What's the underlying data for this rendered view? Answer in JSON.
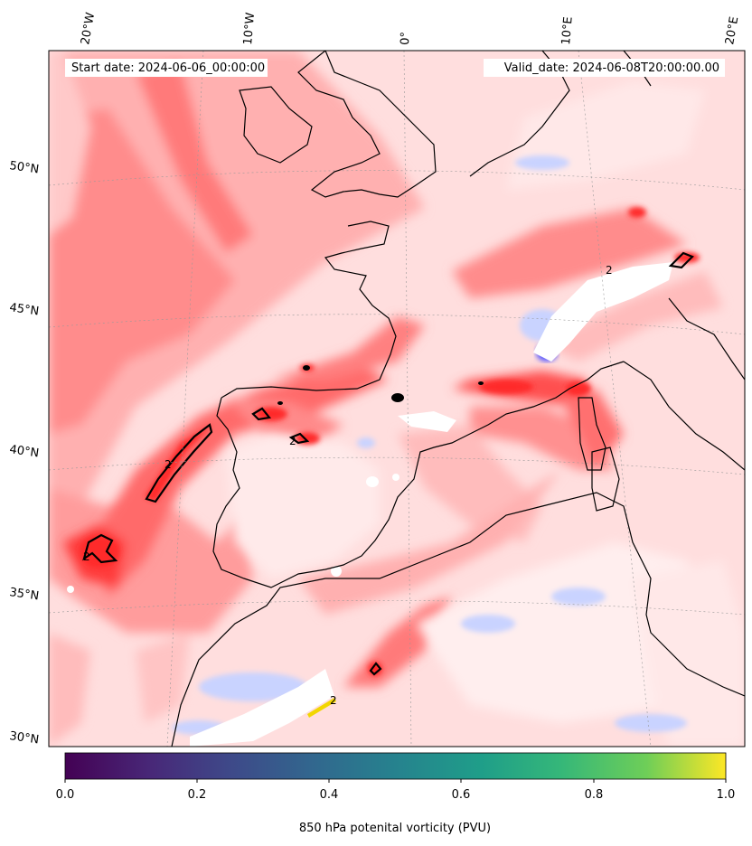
{
  "header": {
    "start_date": "Start date: 2024-06-06_00:00:00",
    "valid_date": "Valid_date: 2024-06-08T20:00:00.00"
  },
  "lon_labels": [
    "20°W",
    "10°W",
    "0°",
    "10°E",
    "20°E"
  ],
  "lat_labels": [
    "50°N",
    "45°N",
    "40°N",
    "35°N",
    "30°N"
  ],
  "colorbar": {
    "label": "850 hPa potenital vorticity (PVU)",
    "ticks": [
      "0.0",
      "0.2",
      "0.4",
      "0.6",
      "0.8",
      "1.0"
    ],
    "range": [
      0,
      1
    ],
    "colormap": "viridis"
  },
  "contour": {
    "level_label": "2"
  },
  "colors": {
    "field_low": "#ffe6e6",
    "field_mid": "#ff9c9c",
    "field_high": "#ff3b3b",
    "field_negative": "#c9d3ff",
    "coastline": "#000000"
  }
}
